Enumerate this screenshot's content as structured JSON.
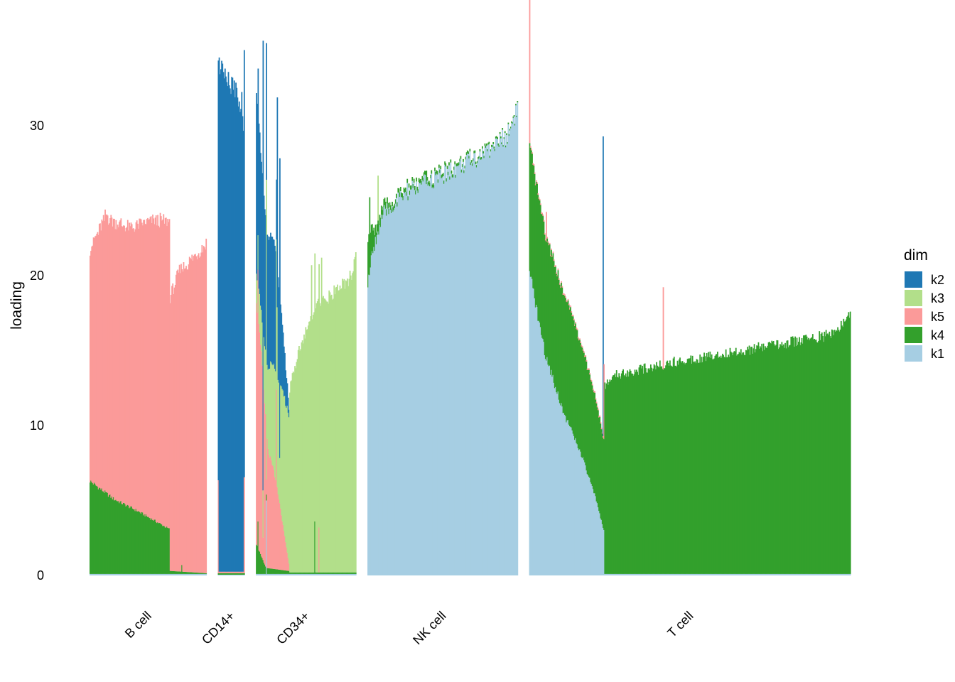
{
  "chart_data": {
    "type": "bar",
    "subtype": "stacked-structure-plot",
    "ylabel": "loading",
    "xlabel": "",
    "ylim": [
      0,
      36
    ],
    "yticks": [
      0,
      10,
      20,
      30
    ],
    "grid": false,
    "legend": {
      "title": "dim",
      "placement": "right",
      "items": [
        {
          "key": "k2",
          "color": "#1f78b4"
        },
        {
          "key": "k3",
          "color": "#b2df8a"
        },
        {
          "key": "k5",
          "color": "#fb9a99"
        },
        {
          "key": "k4",
          "color": "#33a02c"
        },
        {
          "key": "k1",
          "color": "#a6cee3"
        }
      ]
    },
    "stack_order_bottom_to_top": [
      "k1",
      "k4",
      "k5",
      "k3",
      "k2"
    ],
    "groups": [
      {
        "name": "B cell",
        "n_bars": 140,
        "segments": [
          {
            "from": 0,
            "to": 96,
            "profile": {
              "k1": [
                [
                  0,
                  0.1
                ],
                [
                  1,
                  0.1
                ]
              ],
              "k4": [
                [
                  0,
                  6.2
                ],
                [
                  0.3,
                  5.0
                ],
                [
                  0.6,
                  4.2
                ],
                [
                  1,
                  3.0
                ]
              ],
              "k5": [
                [
                  0,
                  15.5
                ],
                [
                  0.2,
                  18.5
                ],
                [
                  0.5,
                  18.6
                ],
                [
                  0.8,
                  20.0
                ],
                [
                  1,
                  20.5
                ]
              ]
            }
          },
          {
            "from": 96,
            "to": 140,
            "profile": {
              "k1": [
                [
                  0,
                  0.1
                ],
                [
                  1,
                  0.1
                ]
              ],
              "k4": [
                [
                  0,
                  0.2
                ],
                [
                  1,
                  0.05
                ]
              ],
              "k5": [
                [
                  0,
                  18.3
                ],
                [
                  0.25,
                  20.0
                ],
                [
                  0.6,
                  20.9
                ],
                [
                  1,
                  22.0
                ]
              ]
            }
          }
        ],
        "spikes": [
          {
            "at": 110,
            "k4": 0.6
          }
        ]
      },
      {
        "name": "CD14+",
        "n_bars": 32,
        "segments": [
          {
            "from": 0,
            "to": 32,
            "profile": {
              "k1": [
                [
                  0,
                  0.05
                ],
                [
                  1,
                  0.05
                ]
              ],
              "k4": [
                [
                  0,
                  0.1
                ],
                [
                  1,
                  0.1
                ]
              ],
              "k5": [
                [
                  0,
                  0.1
                ],
                [
                  1,
                  0.1
                ]
              ],
              "k2": [
                [
                  0,
                  33.8
                ],
                [
                  0.3,
                  32.6
                ],
                [
                  0.6,
                  32.4
                ],
                [
                  1,
                  29.8
                ]
              ]
            }
          }
        ],
        "spikes": [
          {
            "at": 0,
            "k5": 6.2,
            "k2": 28.0
          },
          {
            "at": 28,
            "k2": 32.0
          },
          {
            "at": 31,
            "k5": 6.4,
            "k2": 28.5
          }
        ]
      },
      {
        "name": "CD34+",
        "n_bars": 120,
        "segments": [
          {
            "from": 0,
            "to": 40,
            "profile": {
              "k1": [
                [
                  0,
                  0.1
                ],
                [
                  1,
                  0.1
                ]
              ],
              "k4": [
                [
                  0,
                  2.0
                ],
                [
                  0.3,
                  0.4
                ],
                [
                  1,
                  0.2
                ]
              ],
              "k5": [
                [
                  0,
                  16.0
                ],
                [
                  0.15,
                  14.0
                ],
                [
                  0.35,
                  8.0
                ],
                [
                  0.6,
                  6.0
                ],
                [
                  1,
                  0.5
                ]
              ],
              "k3": [
                [
                  0,
                  2.0
                ],
                [
                  0.2,
                  3.0
                ],
                [
                  0.4,
                  6.0
                ],
                [
                  0.7,
                  8.0
                ],
                [
                  1,
                  10.0
                ]
              ],
              "k2": [
                [
                  0,
                  12.0
                ],
                [
                  0.15,
                  10.0
                ],
                [
                  0.3,
                  9.0
                ],
                [
                  0.6,
                  8.0
                ],
                [
                  1,
                  0.5
                ]
              ]
            }
          },
          {
            "from": 40,
            "to": 120,
            "profile": {
              "k1": [
                [
                  0,
                  0.1
                ],
                [
                  1,
                  0.1
                ]
              ],
              "k4": [
                [
                  0,
                  0.1
                ],
                [
                  1,
                  0.1
                ]
              ],
              "k3": [
                [
                  0,
                  12.3
                ],
                [
                  0.15,
                  15.0
                ],
                [
                  0.4,
                  17.7
                ],
                [
                  0.7,
                  18.8
                ],
                [
                  0.95,
                  19.8
                ],
                [
                  1,
                  21.0
                ]
              ]
            }
          }
        ],
        "spikes": [
          {
            "at": 2,
            "k4": 3.5,
            "k5": 16.8
          },
          {
            "at": 8,
            "k2": 30.0,
            "k5": 1.5
          },
          {
            "at": 12,
            "k1": 5.0,
            "k5": 1.0,
            "k3": 20.0
          },
          {
            "at": 24,
            "k5": 12.0,
            "k3": 10.0,
            "k2": 4.0
          },
          {
            "at": 25,
            "k3": 12.0,
            "k2": 14.0
          },
          {
            "at": 28,
            "k3": 3.0,
            "k2": 20.0
          },
          {
            "at": 66,
            "k3": 20.5
          },
          {
            "at": 70,
            "k4": 3.5
          },
          {
            "at": 75,
            "k5": 3.0
          },
          {
            "at": 78,
            "k3": 21.0
          }
        ]
      },
      {
        "name": "NK cell",
        "n_bars": 180,
        "segments": [
          {
            "from": 0,
            "to": 180,
            "profile": {
              "k4": [
                [
                  0,
                  3.0
                ],
                [
                  0.05,
                  0.8
                ],
                [
                  0.15,
                  0.3
                ],
                [
                  1,
                  0.1
                ]
              ],
              "k1": [
                [
                  0,
                  19.5
                ],
                [
                  0.04,
                  22.0
                ],
                [
                  0.1,
                  24.0
                ],
                [
                  0.25,
                  25.5
                ],
                [
                  0.5,
                  26.7
                ],
                [
                  0.75,
                  28.0
                ],
                [
                  0.93,
                  29.3
                ],
                [
                  1,
                  31.2
                ]
              ]
            }
          }
        ],
        "spikes": [
          {
            "at": 2,
            "k4": 5.2
          },
          {
            "at": 12,
            "k3": 3.0
          },
          {
            "at": 70,
            "k4": 0.9
          }
        ]
      },
      {
        "name": "T cell",
        "n_bars": 385,
        "segments": [
          {
            "from": 0,
            "to": 90,
            "profile": {
              "k1": [
                [
                  0,
                  20.0
                ],
                [
                  0.05,
                  19.0
                ],
                [
                  0.2,
                  15.0
                ],
                [
                  0.45,
                  11.0
                ],
                [
                  0.7,
                  8.0
                ],
                [
                  0.9,
                  5.0
                ],
                [
                  1,
                  3.0
                ]
              ],
              "k4": [
                [
                  0,
                  8.5
                ],
                [
                  0.2,
                  8.0
                ],
                [
                  0.5,
                  8.0
                ],
                [
                  0.8,
                  7.0
                ],
                [
                  1,
                  6.0
                ]
              ],
              "k5": [
                [
                  0,
                  0.1
                ],
                [
                  1,
                  0.1
                ]
              ]
            }
          },
          {
            "from": 90,
            "to": 385,
            "profile": {
              "k1": [
                [
                  0,
                  0.1
                ],
                [
                  1,
                  0.1
                ]
              ],
              "k4": [
                [
                  0,
                  12.6
                ],
                [
                  0.05,
                  13.3
                ],
                [
                  0.3,
                  14.2
                ],
                [
                  0.6,
                  15.0
                ],
                [
                  0.9,
                  15.9
                ],
                [
                  0.96,
                  16.4
                ],
                [
                  1,
                  17.4
                ]
              ]
            }
          }
        ],
        "spikes": [
          {
            "at": 0,
            "k5": 13.6
          },
          {
            "at": 20,
            "k5": 2.0
          },
          {
            "at": 88,
            "k2": 20.0
          },
          {
            "at": 89,
            "k5": 5.0
          },
          {
            "at": 160,
            "k5": 5.5
          }
        ]
      }
    ]
  }
}
